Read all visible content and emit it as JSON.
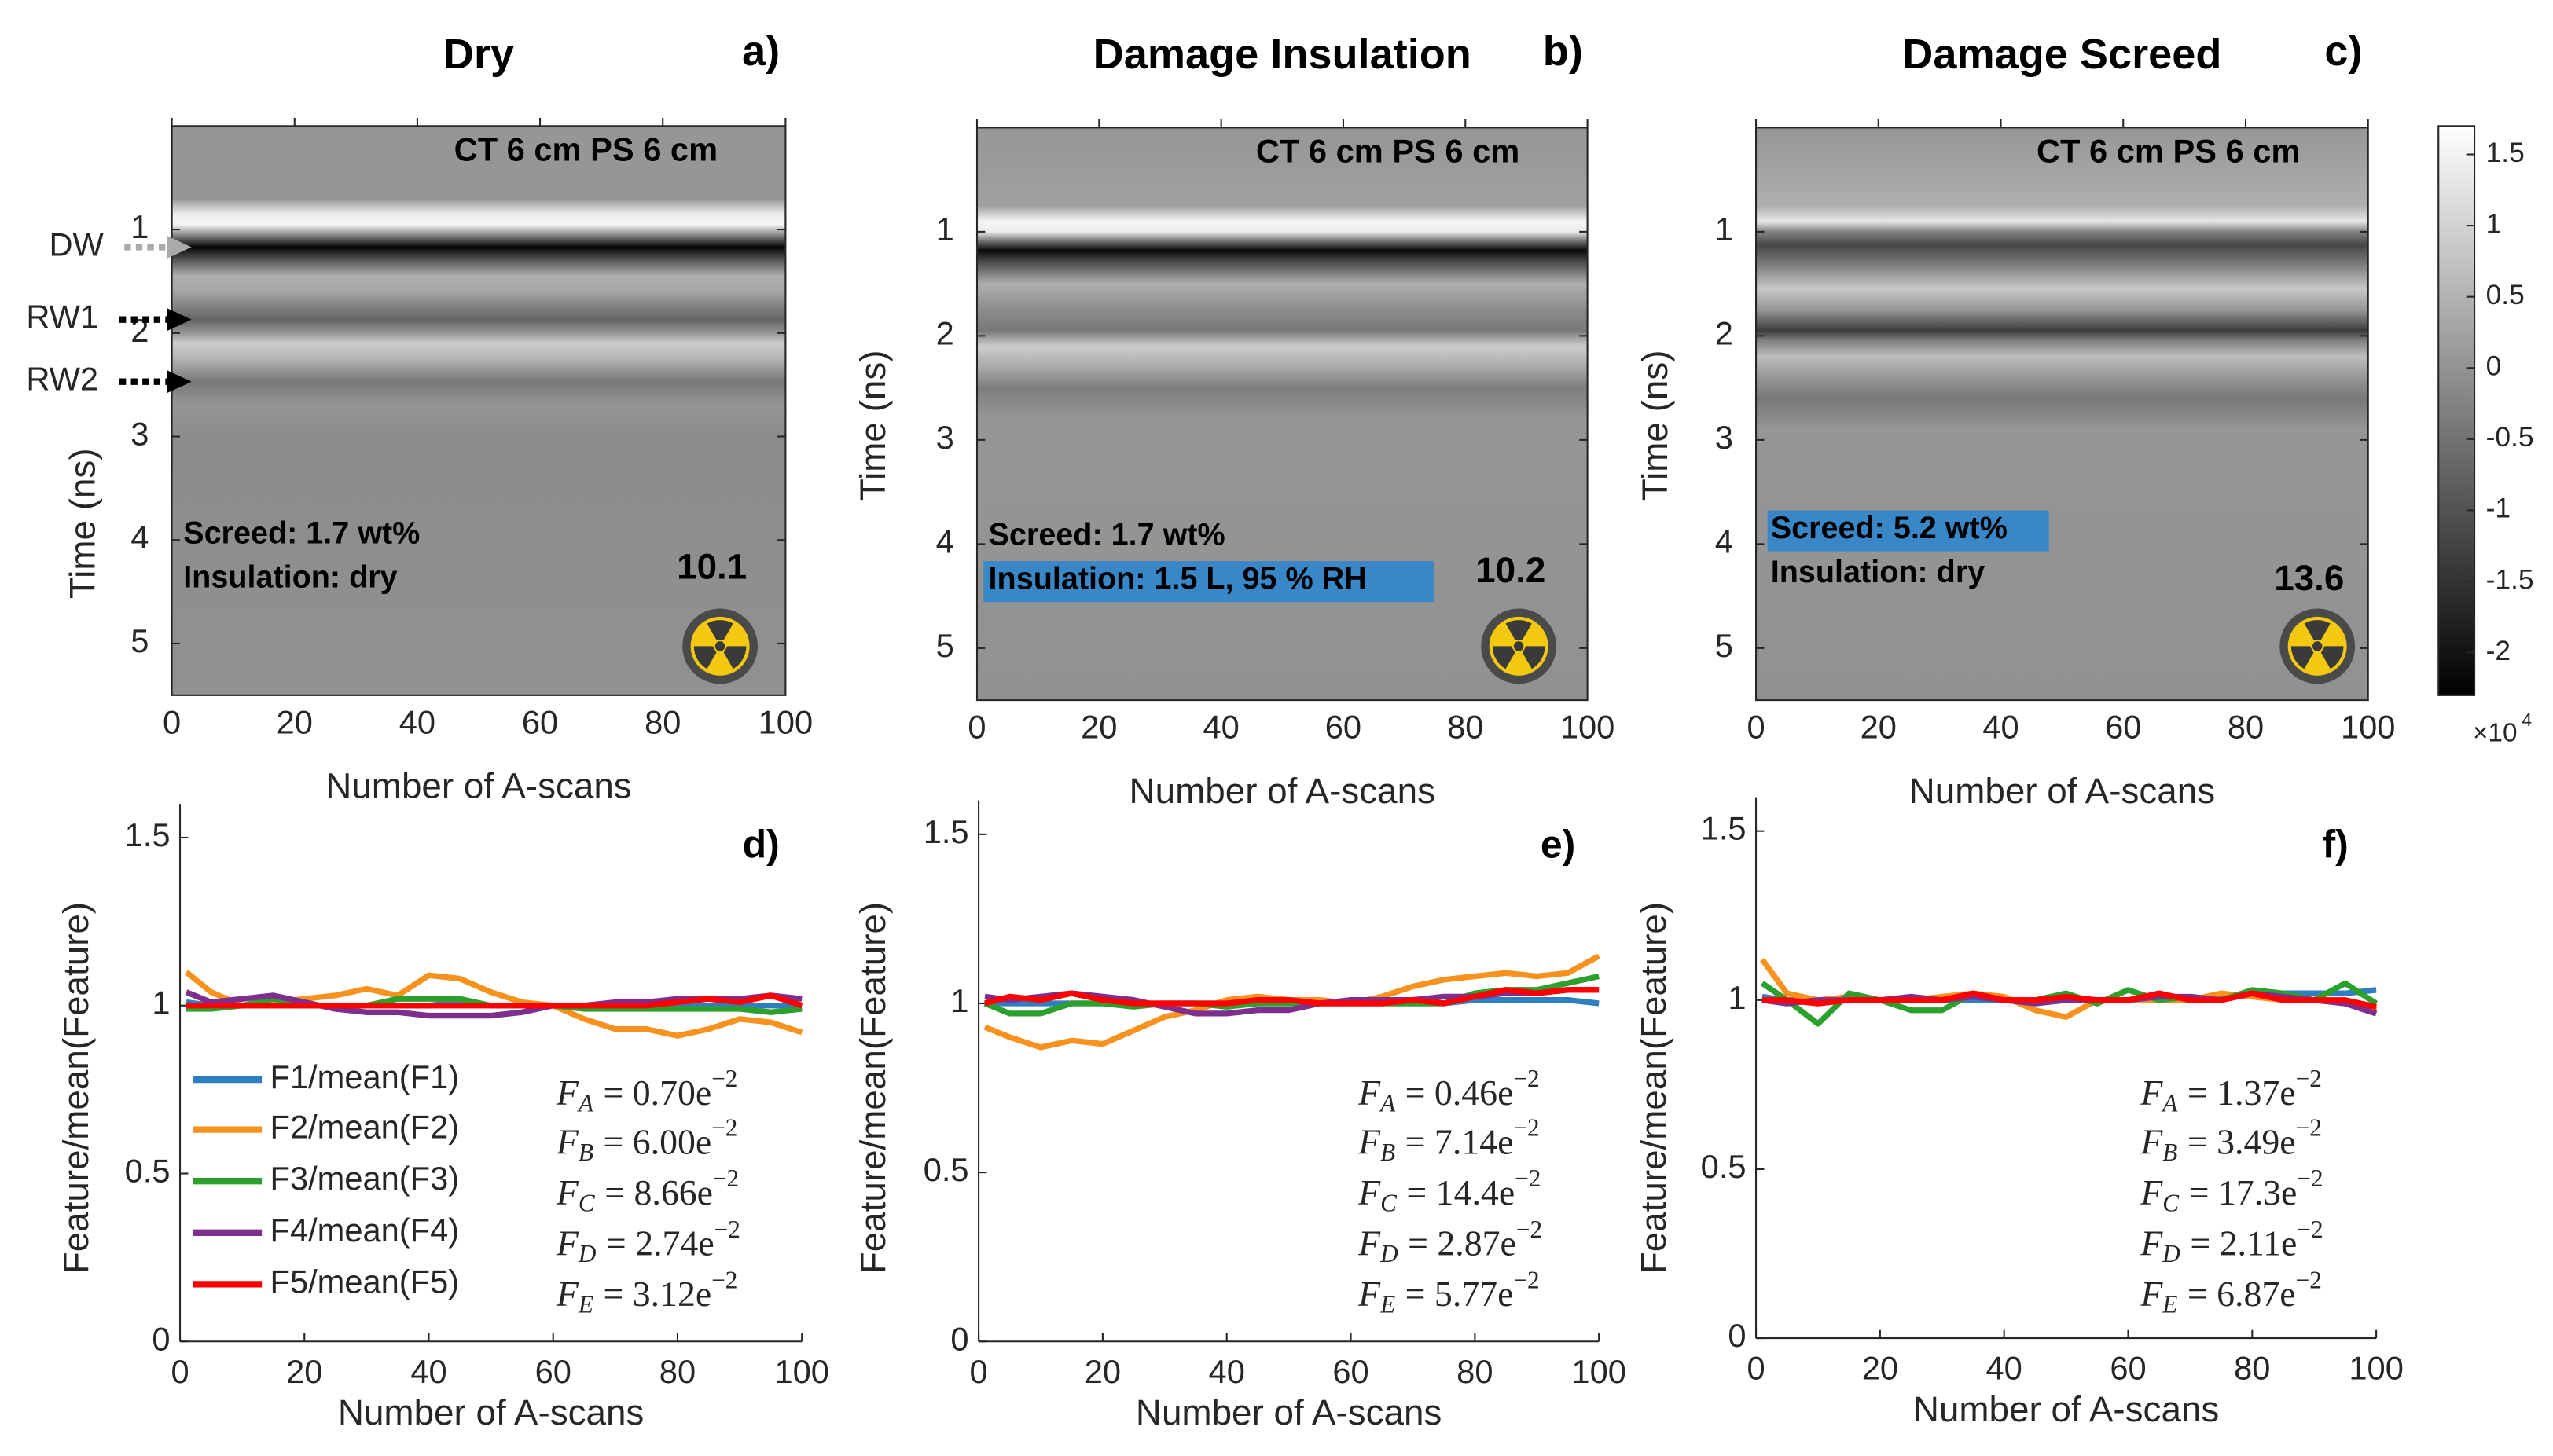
{
  "colors": {
    "F1": "#2E7EC2",
    "F2": "#F7921E",
    "F3": "#2CA02C",
    "F4": "#7E2F8E",
    "F5": "#FF0000",
    "highlight": "#3A87C8",
    "radiation_yellow": "#F2C811"
  },
  "top_axes": {
    "ylabel": "Time (ns)",
    "xlabel": "Number of A-scans",
    "ylim": [
      0,
      5.5
    ],
    "xlim": [
      0,
      100
    ],
    "yticks": [
      "1",
      "2",
      "3",
      "4",
      "5"
    ],
    "xticks": [
      "0",
      "20",
      "40",
      "60",
      "80",
      "100"
    ]
  },
  "top_panels": [
    {
      "title": "Dry",
      "letter": "a)",
      "setup": "CT 6 cm PS 6 cm",
      "screed": "Screed: 1.7 wt%",
      "insulation": "Insulation: dry",
      "highlight": "none",
      "value": "10.1",
      "icon": "radiation-icon"
    },
    {
      "title": "Damage Insulation",
      "letter": "b)",
      "setup": "CT 6 cm PS 6 cm",
      "screed": "Screed: 1.7 wt%",
      "insulation": "Insulation: 1.5 L, 95 % RH",
      "highlight": "insulation",
      "value": "10.2",
      "icon": "radiation-icon"
    },
    {
      "title": "Damage Screed",
      "letter": "c)",
      "setup": "CT 6 cm PS 6 cm",
      "screed": "Screed: 5.2 wt%",
      "insulation": "Insulation: dry",
      "highlight": "screed",
      "value": "13.6",
      "icon": "radiation-icon"
    }
  ],
  "markers": [
    {
      "label": "DW",
      "time_ns": 1.17,
      "color": "#AAAAAA"
    },
    {
      "label": "RW1",
      "time_ns": 1.87,
      "color": "#000000"
    },
    {
      "label": "RW2",
      "time_ns": 2.47,
      "color": "#000000"
    }
  ],
  "colorbar": {
    "ticks": [
      1.5,
      1,
      0.5,
      0,
      -0.5,
      -1,
      -1.5,
      -2
    ],
    "tick_labels": [
      "1.5",
      "1",
      "0.5",
      "0",
      "-0.5",
      "-1",
      "-1.5",
      "-2"
    ],
    "range": [
      -2.3,
      1.7
    ],
    "multiplier": "×10",
    "exponent": "4"
  },
  "chart_data": [
    {
      "type": "line",
      "letter": "d)",
      "xlabel": "Number of A-scans",
      "ylabel": "Feature/mean(Feature)",
      "xlim": [
        0,
        100
      ],
      "ylim": [
        0,
        1.6
      ],
      "xticks": [
        "0",
        "20",
        "40",
        "60",
        "80",
        "100"
      ],
      "yticks": [
        "0",
        "0.5",
        "1",
        "1.5"
      ],
      "legend": [
        "F1/mean(F1)",
        "F2/mean(F2)",
        "F3/mean(F3)",
        "F4/mean(F4)",
        "F5/mean(F5)"
      ],
      "legend_placement": "center-left",
      "x": [
        1,
        5,
        10,
        15,
        20,
        25,
        30,
        35,
        40,
        45,
        50,
        55,
        60,
        65,
        70,
        75,
        80,
        85,
        90,
        95,
        100
      ],
      "series": [
        {
          "name": "F1/mean(F1)",
          "values": [
            1.01,
            1.0,
            1.0,
            1.0,
            1.0,
            1.0,
            1.0,
            1.0,
            1.0,
            1.01,
            1.0,
            1.0,
            1.0,
            1.0,
            1.0,
            1.01,
            1.0,
            1.0,
            1.0,
            1.0,
            1.0
          ]
        },
        {
          "name": "F2/mean(F2)",
          "values": [
            1.1,
            1.04,
            1.0,
            1.01,
            1.02,
            1.03,
            1.05,
            1.03,
            1.09,
            1.08,
            1.04,
            1.01,
            1.0,
            0.96,
            0.93,
            0.93,
            0.91,
            0.93,
            0.96,
            0.95,
            0.92
          ]
        },
        {
          "name": "F3/mean(F3)",
          "values": [
            0.99,
            0.99,
            1.0,
            1.02,
            1.0,
            1.0,
            1.0,
            1.02,
            1.02,
            1.02,
            1.0,
            1.0,
            1.0,
            0.99,
            0.99,
            0.99,
            0.99,
            0.99,
            0.99,
            0.98,
            0.99
          ]
        },
        {
          "name": "F4/mean(F4)",
          "values": [
            1.04,
            1.01,
            1.02,
            1.03,
            1.01,
            0.99,
            0.98,
            0.98,
            0.97,
            0.97,
            0.97,
            0.98,
            1.0,
            1.0,
            1.01,
            1.01,
            1.02,
            1.02,
            1.02,
            1.03,
            1.02
          ]
        },
        {
          "name": "F5/mean(F5)",
          "values": [
            1.0,
            1.0,
            1.0,
            1.0,
            1.0,
            1.0,
            1.0,
            1.0,
            1.0,
            1.0,
            1.0,
            1.0,
            1.0,
            1.0,
            1.0,
            1.0,
            1.01,
            1.02,
            1.01,
            1.03,
            1.0
          ]
        }
      ],
      "annotations": [
        {
          "sym": "F",
          "sub": "A",
          "value": "= 0.70e",
          "exp": "−2"
        },
        {
          "sym": "F",
          "sub": "B",
          "value": "= 6.00e",
          "exp": "−2"
        },
        {
          "sym": "F",
          "sub": "C",
          "value": "= 8.66e",
          "exp": "−2"
        },
        {
          "sym": "F",
          "sub": "D",
          "value": "= 2.74e",
          "exp": "−2"
        },
        {
          "sym": "F",
          "sub": "E",
          "value": "= 3.12e",
          "exp": "−2"
        }
      ]
    },
    {
      "type": "line",
      "letter": "e)",
      "xlabel": "Number of A-scans",
      "ylabel": "Feature/mean(Feature)",
      "xlim": [
        0,
        100
      ],
      "ylim": [
        0,
        1.6
      ],
      "xticks": [
        "0",
        "20",
        "40",
        "60",
        "80",
        "100"
      ],
      "yticks": [
        "0",
        "0.5",
        "1",
        "1.5"
      ],
      "x": [
        1,
        5,
        10,
        15,
        20,
        25,
        30,
        35,
        40,
        45,
        50,
        55,
        60,
        65,
        70,
        75,
        80,
        85,
        90,
        95,
        100
      ],
      "series": [
        {
          "name": "F1/mean(F1)",
          "values": [
            1.0,
            1.0,
            1.0,
            1.0,
            1.0,
            1.0,
            1.0,
            1.0,
            1.0,
            1.0,
            1.0,
            1.0,
            1.0,
            1.0,
            1.0,
            1.0,
            1.01,
            1.01,
            1.01,
            1.01,
            1.0
          ]
        },
        {
          "name": "F2/mean(F2)",
          "values": [
            0.93,
            0.9,
            0.87,
            0.89,
            0.88,
            0.92,
            0.96,
            0.98,
            1.01,
            1.02,
            1.01,
            1.01,
            1.0,
            1.02,
            1.05,
            1.07,
            1.08,
            1.09,
            1.08,
            1.09,
            1.14
          ]
        },
        {
          "name": "F3/mean(F3)",
          "values": [
            1.0,
            0.97,
            0.97,
            1.0,
            1.0,
            0.99,
            1.0,
            1.0,
            0.99,
            1.0,
            1.0,
            1.0,
            1.0,
            1.0,
            1.0,
            1.0,
            1.03,
            1.04,
            1.04,
            1.06,
            1.08
          ]
        },
        {
          "name": "F4/mean(F4)",
          "values": [
            1.02,
            1.01,
            1.02,
            1.03,
            1.02,
            1.01,
            0.99,
            0.97,
            0.97,
            0.98,
            0.98,
            1.0,
            1.01,
            1.01,
            1.01,
            1.02,
            1.02,
            1.03,
            1.03,
            1.04,
            1.04
          ]
        },
        {
          "name": "F5/mean(F5)",
          "values": [
            1.0,
            1.02,
            1.01,
            1.03,
            1.01,
            1.0,
            1.0,
            1.0,
            1.0,
            1.01,
            1.01,
            1.0,
            1.0,
            1.0,
            1.01,
            1.0,
            1.02,
            1.04,
            1.03,
            1.04,
            1.04
          ]
        }
      ],
      "annotations": [
        {
          "sym": "F",
          "sub": "A",
          "value": "= 0.46e",
          "exp": "−2"
        },
        {
          "sym": "F",
          "sub": "B",
          "value": "= 7.14e",
          "exp": "−2"
        },
        {
          "sym": "F",
          "sub": "C",
          "value": "= 14.4e",
          "exp": "−2"
        },
        {
          "sym": "F",
          "sub": "D",
          "value": "= 2.87e",
          "exp": "−2"
        },
        {
          "sym": "F",
          "sub": "E",
          "value": "= 5.77e",
          "exp": "−2"
        }
      ]
    },
    {
      "type": "line",
      "letter": "f)",
      "xlabel": "Number of A-scans",
      "ylabel": "Feature/mean(Feature)",
      "xlim": [
        0,
        100
      ],
      "ylim": [
        0,
        1.6
      ],
      "xticks": [
        "0",
        "20",
        "40",
        "60",
        "80",
        "100"
      ],
      "yticks": [
        "0",
        "0.5",
        "1",
        "1.5"
      ],
      "x": [
        1,
        5,
        10,
        15,
        20,
        25,
        30,
        35,
        40,
        45,
        50,
        55,
        60,
        65,
        70,
        75,
        80,
        85,
        90,
        95,
        100
      ],
      "series": [
        {
          "name": "F1/mean(F1)",
          "values": [
            1.01,
            1.0,
            1.0,
            1.0,
            1.0,
            1.0,
            1.0,
            1.0,
            1.0,
            1.0,
            1.0,
            1.0,
            1.0,
            1.0,
            1.0,
            1.01,
            1.02,
            1.02,
            1.02,
            1.02,
            1.03
          ]
        },
        {
          "name": "F2/mean(F2)",
          "values": [
            1.12,
            1.02,
            1.0,
            1.01,
            1.0,
            1.0,
            1.01,
            1.02,
            1.01,
            0.97,
            0.95,
            1.0,
            1.0,
            1.0,
            1.0,
            1.02,
            1.01,
            1.0,
            1.0,
            1.0,
            0.97
          ]
        },
        {
          "name": "F3/mean(F3)",
          "values": [
            1.05,
            1.0,
            0.93,
            1.02,
            1.0,
            0.97,
            0.97,
            1.02,
            1.0,
            1.0,
            1.02,
            0.99,
            1.03,
            1.0,
            1.01,
            1.0,
            1.03,
            1.02,
            1.0,
            1.05,
            0.99
          ]
        },
        {
          "name": "F4/mean(F4)",
          "values": [
            1.0,
            0.99,
            1.0,
            1.0,
            1.0,
            1.01,
            1.0,
            1.01,
            1.0,
            0.99,
            1.0,
            1.0,
            1.0,
            1.01,
            1.01,
            1.0,
            1.02,
            1.01,
            1.0,
            0.99,
            0.96
          ]
        },
        {
          "name": "F5/mean(F5)",
          "values": [
            1.0,
            1.0,
            0.99,
            1.0,
            1.0,
            1.0,
            1.0,
            1.02,
            1.0,
            1.0,
            1.01,
            1.0,
            1.0,
            1.02,
            1.0,
            1.0,
            1.02,
            1.0,
            1.0,
            1.0,
            0.98
          ]
        }
      ],
      "annotations": [
        {
          "sym": "F",
          "sub": "A",
          "value": "= 1.37e",
          "exp": "−2"
        },
        {
          "sym": "F",
          "sub": "B",
          "value": "= 3.49e",
          "exp": "−2"
        },
        {
          "sym": "F",
          "sub": "C",
          "value": "= 17.3e",
          "exp": "−2"
        },
        {
          "sym": "F",
          "sub": "D",
          "value": "= 2.11e",
          "exp": "−2"
        },
        {
          "sym": "F",
          "sub": "E",
          "value": "= 6.87e",
          "exp": "−2"
        }
      ]
    }
  ]
}
